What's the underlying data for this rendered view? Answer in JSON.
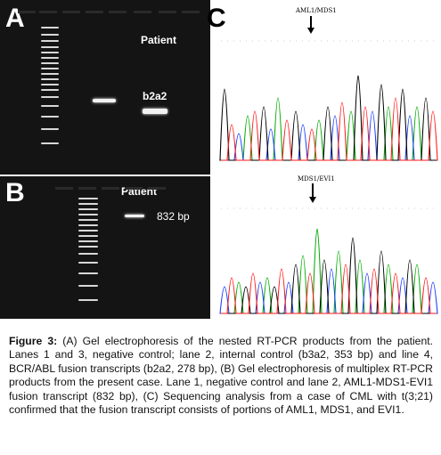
{
  "panel_a": {
    "letter": "A",
    "label_patient": "Patient",
    "label_band": "b2a2"
  },
  "panel_b": {
    "letter": "B",
    "label_patient": "Patient",
    "label_band": "832 bp"
  },
  "panel_c": {
    "letter": "C",
    "label_top": "AML1/MDS1",
    "label_bottom": "MDS1/EVI1",
    "colors": {
      "a": "#00aa00",
      "c": "#1a3dff",
      "g": "#000000",
      "t": "#ff1a1a"
    }
  },
  "caption": {
    "label": "Figure 3:",
    "text": " (A) Gel electrophoresis of the nested RT-PCR products from the patient. Lanes 1 and 3, negative control; lane 2, internal control (b3a2, 353 bp) and line 4, BCR/ABL fusion transcripts (b2a2, 278 bp), (B) Gel electrophoresis of multiplex RT-PCR products from the present case. Lane 1, negative control and lane 2, AML1-MDS1-EVI1 fusion transcript (832 bp), (C) Sequencing analysis from a case of CML with t(3;21) confirmed that the fusion transcript consists of portions of AML1, MDS1, and EVI1."
  }
}
